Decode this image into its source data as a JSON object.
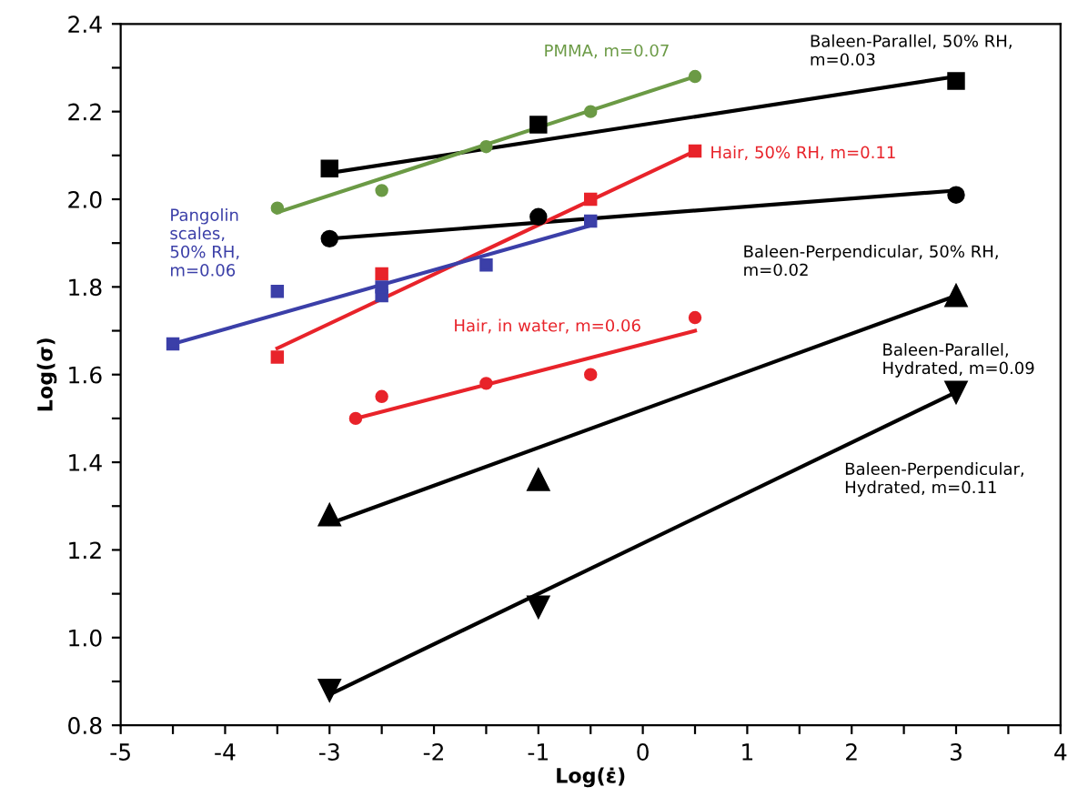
{
  "chart_data": {
    "type": "scatter",
    "xlabel": "Log(ε̇)",
    "ylabel": "Log(σ)",
    "xlim": [
      -5,
      4
    ],
    "ylim": [
      0.8,
      2.4
    ],
    "xticks": [
      -5,
      {
        "value": -4.5,
        "label": null
      },
      -4,
      {
        "value": -3.5,
        "label": null
      },
      -3,
      {
        "value": -2.5,
        "label": null
      },
      -2,
      {
        "value": -1.5,
        "label": null
      },
      -1,
      {
        "value": -0.5,
        "label": null
      },
      0,
      {
        "value": 0.5,
        "label": null
      },
      1,
      {
        "value": 1.5,
        "label": null
      },
      2,
      {
        "value": 2.5,
        "label": null
      },
      3,
      {
        "value": 3.5,
        "label": null
      },
      4
    ],
    "yticks": [
      0.8,
      {
        "value": 0.9,
        "label": null
      },
      {
        "value": 1.0,
        "label": "1.0"
      },
      {
        "value": 1.1,
        "label": null
      },
      1.2,
      {
        "value": 1.3,
        "label": null
      },
      1.4,
      {
        "value": 1.5,
        "label": null
      },
      1.6,
      {
        "value": 1.7,
        "label": null
      },
      1.8,
      {
        "value": 1.9,
        "label": null
      },
      {
        "value": 2.0,
        "label": "2.0"
      },
      {
        "value": 2.1,
        "label": null
      },
      2.2,
      {
        "value": 2.3,
        "label": null
      },
      2.4
    ],
    "grid": false,
    "legend": false,
    "series": [
      {
        "marker": "square",
        "color": "#000000",
        "x": [
          -3,
          -1,
          3
        ],
        "values": [
          2.07,
          2.17,
          2.27
        ]
      },
      {
        "type": "line",
        "marker": "none",
        "color": "#000000",
        "x": [
          -3,
          3
        ],
        "values": [
          2.06,
          2.28
        ]
      },
      {
        "marker": "circle",
        "color": "#000000",
        "x": [
          -3,
          -1,
          3
        ],
        "values": [
          1.91,
          1.96,
          2.01
        ]
      },
      {
        "type": "line",
        "marker": "none",
        "color": "#000000",
        "x": [
          -3,
          3
        ],
        "values": [
          1.91,
          2.02
        ]
      },
      {
        "marker": "circle",
        "color": "#6b9a45",
        "x": [
          -3.5,
          -2.5,
          -1.5,
          -0.5,
          0.5
        ],
        "values": [
          1.98,
          2.02,
          2.12,
          2.2,
          2.28
        ]
      },
      {
        "type": "line",
        "marker": "none",
        "color": "#6b9a45",
        "x": [
          -3.5,
          0.5
        ],
        "values": [
          1.97,
          2.28
        ]
      },
      {
        "marker": "square",
        "color": "#e8232a",
        "x": [
          -3.5,
          -2.5,
          -0.5,
          0.5
        ],
        "values": [
          1.64,
          1.83,
          2.0,
          2.11
        ]
      },
      {
        "type": "line",
        "marker": "none",
        "color": "#e8232a",
        "x": [
          -3.5,
          0.5
        ],
        "values": [
          1.66,
          2.11
        ]
      },
      {
        "marker": "square",
        "color": "#3b3fa8",
        "x": [
          -4.5,
          -3.5,
          -2.5,
          -2.5,
          -1.5,
          -0.5
        ],
        "values": [
          1.67,
          1.79,
          1.78,
          1.8,
          1.85,
          1.95
        ]
      },
      {
        "type": "line",
        "marker": "none",
        "color": "#3b3fa8",
        "x": [
          -4.5,
          -0.5
        ],
        "values": [
          1.67,
          1.94
        ]
      },
      {
        "marker": "circle",
        "color": "#e8232a",
        "x": [
          -2.75,
          -2.5,
          -1.5,
          -0.5,
          0.5
        ],
        "values": [
          1.5,
          1.55,
          1.58,
          1.6,
          1.73
        ]
      },
      {
        "type": "line",
        "marker": "none",
        "color": "#e8232a",
        "x": [
          -2.75,
          0.5
        ],
        "values": [
          1.5,
          1.7
        ]
      },
      {
        "marker": "triangle",
        "color": "#000000",
        "x": [
          -3,
          -1,
          3
        ],
        "values": [
          1.28,
          1.36,
          1.78
        ]
      },
      {
        "type": "line",
        "marker": "none",
        "color": "#000000",
        "x": [
          -3,
          3
        ],
        "values": [
          1.26,
          1.78
        ]
      },
      {
        "marker": "triangle_down",
        "color": "#000000",
        "x": [
          -3,
          -1,
          3
        ],
        "values": [
          0.88,
          1.07,
          1.56
        ]
      },
      {
        "type": "line",
        "marker": "none",
        "color": "#000000",
        "x": [
          -3,
          3
        ],
        "values": [
          0.87,
          1.56
        ]
      }
    ],
    "annotations": [
      "Baleen-Parallel, 50% RH,\nm=0.03",
      "Baleen-Perpendicular, 50% RH,\nm=0.02",
      "PMMA, m=0.07",
      "Hair, 50% RH, m=0.11",
      "Pangolin\nscales,\n50% RH,\nm=0.06",
      "Hair, in water, m=0.06",
      "Baleen-Parallel,\nHydrated, m=0.09",
      "Baleen-Perpendicular,\nHydrated, m=0.11"
    ]
  }
}
